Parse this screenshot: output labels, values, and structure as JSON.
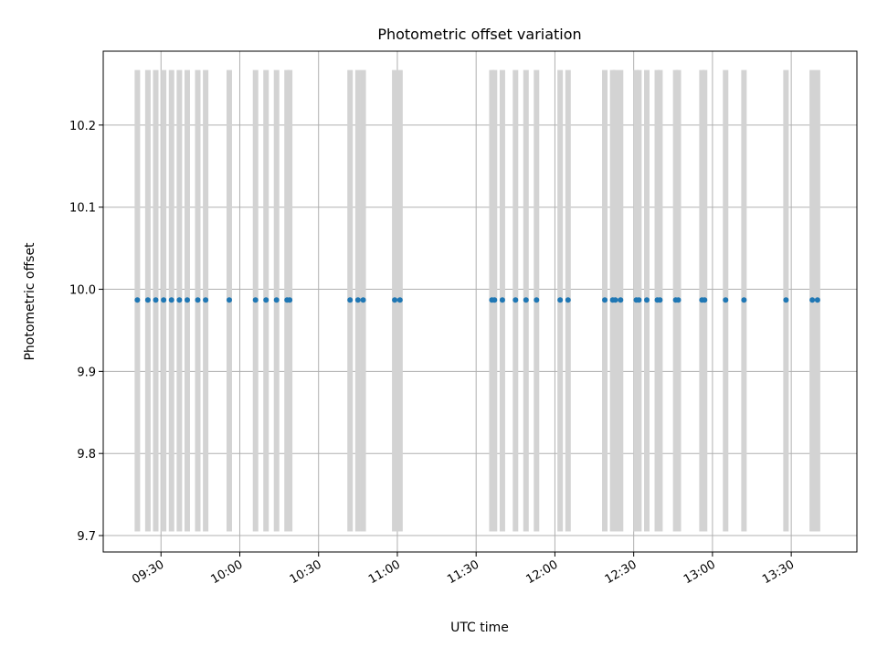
{
  "chart_data": {
    "type": "scatter",
    "title": "Photometric offset variation",
    "xlabel": "UTC time",
    "ylabel": "Photometric offset",
    "xlim": [
      "09:08",
      "13:55"
    ],
    "ylim": [
      9.68,
      10.29
    ],
    "grid": true,
    "x_tick_labels": [
      "09:30",
      "10:00",
      "10:30",
      "11:00",
      "11:30",
      "12:00",
      "12:30",
      "13:00",
      "13:30"
    ],
    "y_tick_labels": [
      "9.7",
      "9.8",
      "9.9",
      "10.0",
      "10.1",
      "10.2"
    ],
    "error_bar_range": [
      9.705,
      10.267
    ],
    "series": [
      {
        "color": "#1f77b4",
        "error_bar_color": "#d3d3d3",
        "x": [
          "09:21",
          "09:25",
          "09:28",
          "09:31",
          "09:34",
          "09:37",
          "09:40",
          "09:44",
          "09:47",
          "09:56",
          "10:06",
          "10:10",
          "10:14",
          "10:18",
          "10:19",
          "10:42",
          "10:45",
          "10:47",
          "10:59",
          "11:01",
          "11:36",
          "11:37",
          "11:40",
          "11:45",
          "11:49",
          "11:53",
          "12:02",
          "12:05",
          "12:19",
          "12:22",
          "12:23",
          "12:25",
          "12:31",
          "12:32",
          "12:35",
          "12:39",
          "12:40",
          "12:46",
          "12:47",
          "12:56",
          "12:57",
          "13:05",
          "13:12",
          "13:28",
          "13:38",
          "13:40"
        ],
        "y": [
          9.987,
          9.987,
          9.987,
          9.987,
          9.987,
          9.987,
          9.987,
          9.987,
          9.987,
          9.987,
          9.987,
          9.987,
          9.987,
          9.987,
          9.987,
          9.987,
          9.987,
          9.987,
          9.987,
          9.987,
          9.987,
          9.987,
          9.987,
          9.987,
          9.987,
          9.987,
          9.987,
          9.987,
          9.987,
          9.987,
          9.987,
          9.987,
          9.987,
          9.987,
          9.987,
          9.987,
          9.987,
          9.987,
          9.987,
          9.987,
          9.987,
          9.987,
          9.987,
          9.987,
          9.987,
          9.987
        ]
      }
    ]
  }
}
